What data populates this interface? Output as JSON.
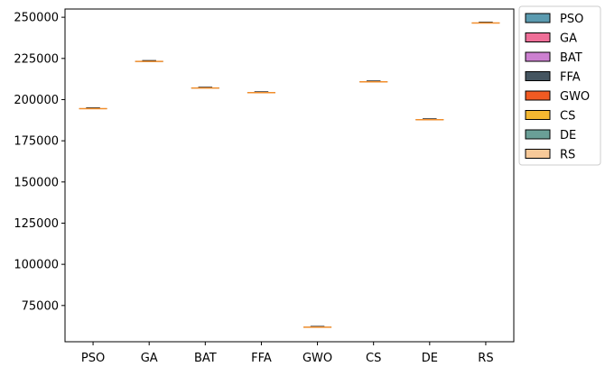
{
  "chart_data": {
    "type": "box",
    "categories": [
      "PSO",
      "GA",
      "BAT",
      "FFA",
      "GWO",
      "CS",
      "DE",
      "RS"
    ],
    "values": [
      194500,
      223200,
      207000,
      204200,
      61800,
      210800,
      187800,
      246500
    ],
    "ylim": [
      53000,
      255000
    ],
    "yticks": [
      75000,
      100000,
      125000,
      150000,
      175000,
      200000,
      225000,
      250000
    ],
    "ytick_labels": [
      "75000",
      "100000",
      "125000",
      "150000",
      "175000",
      "200000",
      "225000",
      "250000"
    ],
    "median_color": "#f28e2b",
    "box_color": "#1f77b4",
    "grid": false,
    "legend_position": "outside-top-right",
    "legend": [
      {
        "label": "PSO",
        "color": "#5b9bb0"
      },
      {
        "label": "GA",
        "color": "#ef6f98"
      },
      {
        "label": "BAT",
        "color": "#cc80d0"
      },
      {
        "label": "FFA",
        "color": "#455560"
      },
      {
        "label": "GWO",
        "color": "#f15a22"
      },
      {
        "label": "CS",
        "color": "#f4b731"
      },
      {
        "label": "DE",
        "color": "#6a9f97"
      },
      {
        "label": "RS",
        "color": "#f7c999"
      }
    ]
  }
}
